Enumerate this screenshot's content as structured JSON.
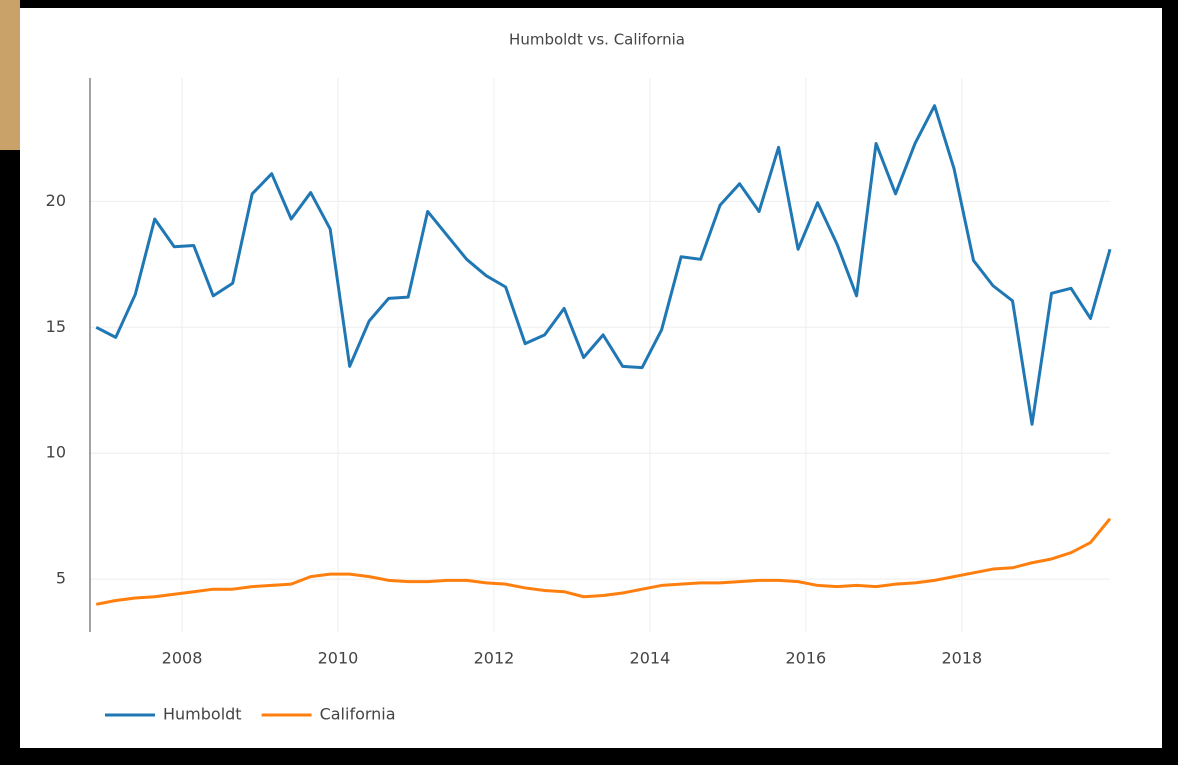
{
  "chart_data": {
    "type": "line",
    "title": "Humboldt vs. California",
    "x": [
      2006.9,
      2007.15,
      2007.4,
      2007.65,
      2007.9,
      2008.15,
      2008.4,
      2008.65,
      2008.9,
      2009.15,
      2009.4,
      2009.65,
      2009.9,
      2010.15,
      2010.4,
      2010.65,
      2010.9,
      2011.15,
      2011.4,
      2011.65,
      2011.9,
      2012.15,
      2012.4,
      2012.65,
      2012.9,
      2013.15,
      2013.4,
      2013.65,
      2013.9,
      2014.15,
      2014.4,
      2014.65,
      2014.9,
      2015.15,
      2015.4,
      2015.65,
      2015.9,
      2016.15,
      2016.4,
      2016.65,
      2016.9,
      2017.15,
      2017.4,
      2017.65,
      2017.9,
      2018.15,
      2018.4,
      2018.65,
      2018.9,
      2019.15,
      2019.4,
      2019.65,
      2019.9
    ],
    "series": [
      {
        "name": "Humboldt",
        "color": "#1f77b4",
        "values": [
          15.0,
          14.6,
          16.3,
          19.3,
          18.2,
          18.25,
          16.25,
          16.75,
          20.3,
          21.1,
          19.3,
          20.35,
          18.9,
          13.45,
          15.25,
          16.15,
          16.2,
          19.6,
          18.65,
          17.7,
          17.05,
          16.6,
          14.35,
          14.7,
          15.75,
          13.8,
          14.7,
          13.45,
          13.4,
          14.9,
          17.8,
          17.7,
          19.85,
          20.7,
          19.6,
          22.15,
          18.1,
          19.95,
          18.3,
          16.25,
          22.3,
          20.3,
          22.3,
          23.8,
          21.3,
          17.65,
          16.65,
          16.05,
          11.15,
          16.35,
          16.55,
          15.35,
          18.1
        ]
      },
      {
        "name": "California",
        "color": "#ff7f0e",
        "values": [
          4.0,
          4.15,
          4.25,
          4.3,
          4.4,
          4.5,
          4.6,
          4.6,
          4.7,
          4.75,
          4.8,
          5.1,
          5.2,
          5.2,
          5.1,
          4.95,
          4.9,
          4.9,
          4.95,
          4.95,
          4.85,
          4.8,
          4.65,
          4.55,
          4.5,
          4.3,
          4.35,
          4.45,
          4.6,
          4.75,
          4.8,
          4.85,
          4.85,
          4.9,
          4.95,
          4.95,
          4.9,
          4.75,
          4.7,
          4.75,
          4.7,
          4.8,
          4.85,
          4.95,
          5.1,
          5.25,
          5.4,
          5.45,
          5.65,
          5.8,
          6.05,
          6.45,
          7.4
        ]
      }
    ],
    "xlim": [
      2006.82,
      2019.9
    ],
    "xticks": [
      2008,
      2010,
      2012,
      2014,
      2016,
      2018
    ],
    "ylim": [
      2.9,
      24.9
    ],
    "yticks": [
      5,
      10,
      15,
      20
    ],
    "grid": true,
    "legend": "bottom-left"
  }
}
